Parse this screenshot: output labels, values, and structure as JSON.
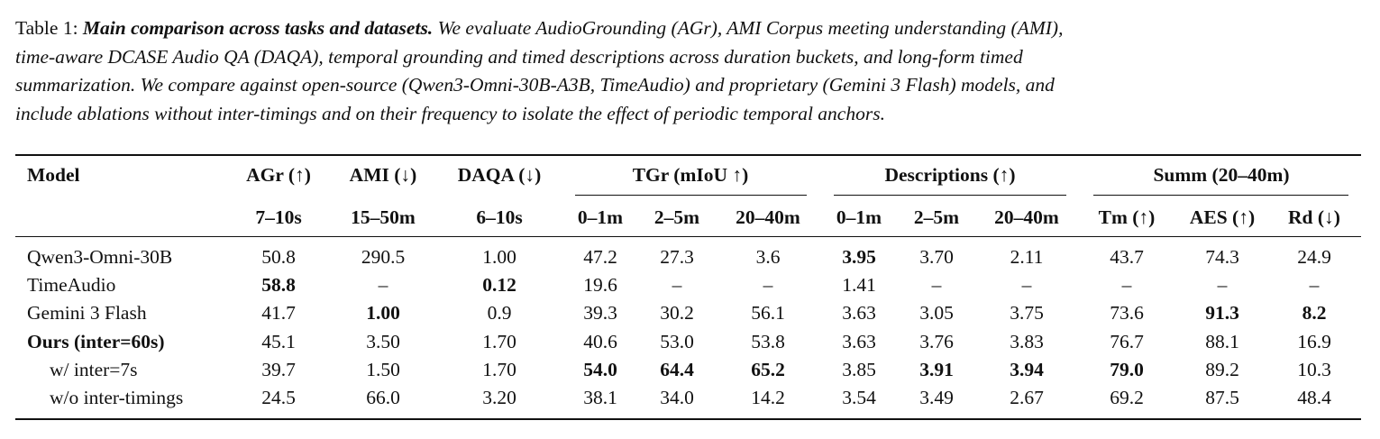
{
  "caption": {
    "label": "Table 1:",
    "title": "Main comparison across tasks and datasets.",
    "line1_rest": "We evaluate AudioGrounding (AGr), AMI Corpus meeting understanding (AMI),",
    "line2": "time-aware DCASE Audio QA (DAQA), temporal grounding and timed descriptions across duration buckets, and long-form timed",
    "line3": "summarization. We compare against open-source (Qwen3-Omni-30B-A3B, TimeAudio) and proprietary (Gemini 3 Flash) models, and",
    "line4": "include ablations without inter-timings and on their frequency to isolate the effect of periodic temporal anchors."
  },
  "headers": {
    "model": "Model",
    "groups": [
      "AGr (↑)",
      "AMI (↓)",
      "DAQA (↓)",
      "TGr (mIoU ↑)",
      "Descriptions (↑)",
      "Summ (20–40m)"
    ],
    "subs": [
      "7–10s",
      "15–50m",
      "6–10s",
      "0–1m",
      "2–5m",
      "20–40m",
      "0–1m",
      "2–5m",
      "20–40m",
      "Tm (↑)",
      "AES (↑)",
      "Rd (↓)"
    ]
  },
  "rows": [
    {
      "model": "Qwen3-Omni-30B",
      "model_bold": false,
      "cells": [
        "50.8",
        "290.5",
        "1.00",
        "47.2",
        "27.3",
        "3.6",
        "3.95",
        "3.70",
        "2.11",
        "43.7",
        "74.3",
        "24.9"
      ],
      "bold": [
        6
      ]
    },
    {
      "model": "TimeAudio",
      "model_bold": false,
      "cells": [
        "58.8",
        "–",
        "0.12",
        "19.6",
        "–",
        "–",
        "1.41",
        "–",
        "–",
        "–",
        "–",
        "–"
      ],
      "bold": [
        0,
        2
      ]
    },
    {
      "model": "Gemini 3 Flash",
      "model_bold": false,
      "cells": [
        "41.7",
        "1.00",
        "0.9",
        "39.3",
        "30.2",
        "56.1",
        "3.63",
        "3.05",
        "3.75",
        "73.6",
        "91.3",
        "8.2"
      ],
      "bold": [
        1,
        10,
        11
      ]
    },
    {
      "model": "Ours (inter=60s)",
      "model_bold": true,
      "cells": [
        "45.1",
        "3.50",
        "1.70",
        "40.6",
        "53.0",
        "53.8",
        "3.63",
        "3.76",
        "3.83",
        "76.7",
        "88.1",
        "16.9"
      ],
      "bold": []
    },
    {
      "model": "w/ inter=7s",
      "model_bold": false,
      "cells": [
        "39.7",
        "1.50",
        "1.70",
        "54.0",
        "64.4",
        "65.2",
        "3.85",
        "3.91",
        "3.94",
        "79.0",
        "89.2",
        "10.3"
      ],
      "bold": [
        3,
        4,
        5,
        7,
        8,
        9
      ]
    },
    {
      "model": "w/o inter-timings",
      "model_bold": false,
      "cells": [
        "24.5",
        "66.0",
        "3.20",
        "38.1",
        "34.0",
        "14.2",
        "3.54",
        "3.49",
        "2.67",
        "69.2",
        "87.5",
        "48.4"
      ],
      "bold": []
    }
  ]
}
